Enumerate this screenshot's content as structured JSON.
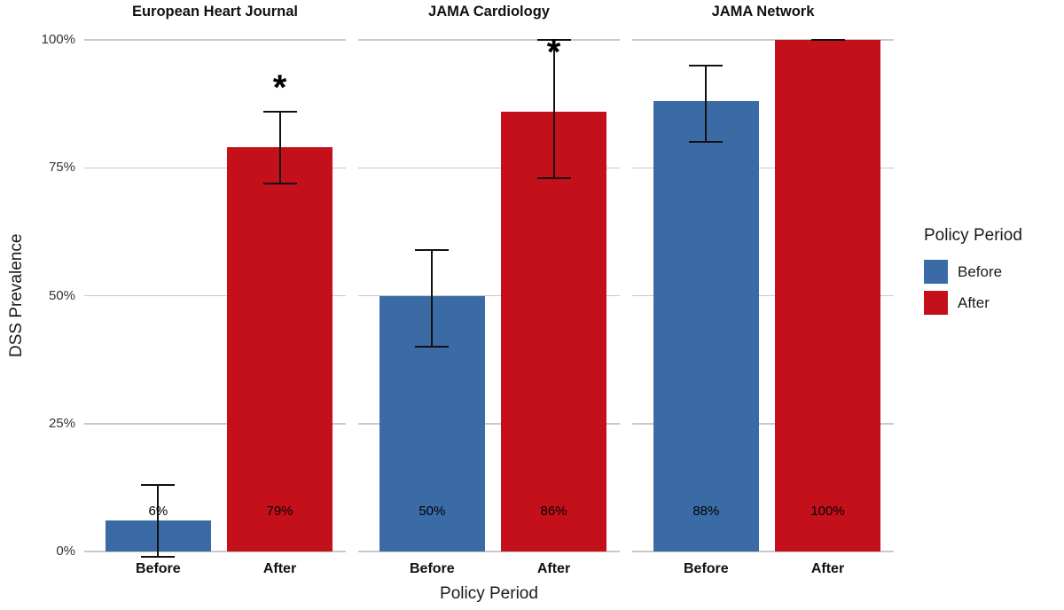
{
  "y_axis": {
    "label": "DSS Prevalence",
    "ticks": [
      {
        "label": "0%",
        "value": 0
      },
      {
        "label": "25%",
        "value": 25
      },
      {
        "label": "50%",
        "value": 50
      },
      {
        "label": "75%",
        "value": 75
      },
      {
        "label": "100%",
        "value": 100
      }
    ]
  },
  "x_axis": {
    "label": "Policy Period",
    "categories": [
      "Before",
      "After"
    ]
  },
  "legend": {
    "title": "Policy Period",
    "items": [
      {
        "label": "Before",
        "color": "#3A6BA5"
      },
      {
        "label": "After",
        "color": "#C3101B"
      }
    ]
  },
  "chart_data": {
    "type": "bar",
    "faceted": true,
    "categories": [
      "Before",
      "After"
    ],
    "ylabel": "DSS Prevalence",
    "xlabel": "Policy Period",
    "ylim": [
      0,
      100
    ],
    "y_tick_labels": [
      "0%",
      "25%",
      "50%",
      "75%",
      "100%"
    ],
    "grid": "horizontal",
    "legend_position": "right",
    "colors": {
      "Before": "#3A6BA5",
      "After": "#C3101B"
    },
    "panels": [
      {
        "title": "European Heart Journal",
        "bars": [
          {
            "category": "Before",
            "value": 6,
            "label": "6%",
            "error_low": -1,
            "error_high": 13,
            "significant": false
          },
          {
            "category": "After",
            "value": 79,
            "label": "79%",
            "error_low": 72,
            "error_high": 86,
            "significant": true,
            "asterisk_y": 91
          }
        ]
      },
      {
        "title": "JAMA Cardiology",
        "bars": [
          {
            "category": "Before",
            "value": 50,
            "label": "50%",
            "error_low": 40,
            "error_high": 59,
            "significant": false
          },
          {
            "category": "After",
            "value": 86,
            "label": "86%",
            "error_low": 73,
            "error_high": 100,
            "significant": true,
            "asterisk_y": 98
          }
        ]
      },
      {
        "title": "JAMA Network",
        "bars": [
          {
            "category": "Before",
            "value": 88,
            "label": "88%",
            "error_low": 80,
            "error_high": 95,
            "significant": false
          },
          {
            "category": "After",
            "value": 100,
            "label": "100%",
            "error_low": 100,
            "error_high": 100,
            "significant": false
          }
        ]
      }
    ]
  }
}
